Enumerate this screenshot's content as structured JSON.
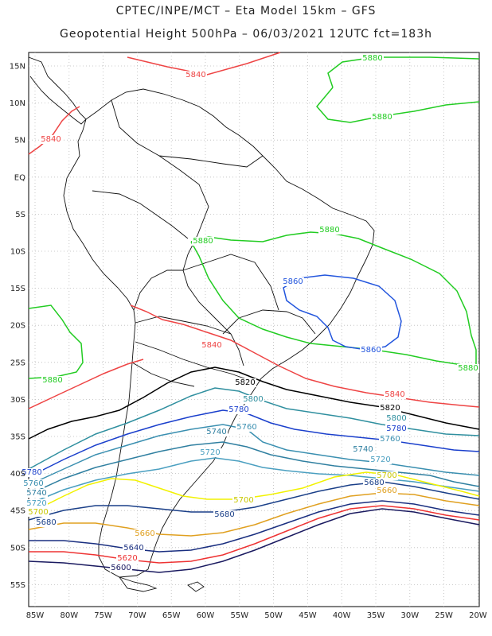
{
  "title_line1": "CPTEC/INPE/MCT  –  Eta Model 15km  –  GFS",
  "title_line2": "Geopotential Height 500hPa – 06/03/2021 12UTC fct=183h",
  "lat_labels": [
    "15N",
    "10N",
    "5N",
    "EQ",
    "5S",
    "10S",
    "15S",
    "20S",
    "25S",
    "30S",
    "35S",
    "40S",
    "45S",
    "50S",
    "55S"
  ],
  "lon_labels": [
    "85W",
    "80W",
    "75W",
    "70W",
    "65W",
    "60W",
    "55W",
    "50W",
    "45W",
    "40W",
    "35W",
    "30W",
    "25W",
    "20W"
  ],
  "contour_labels": {
    "c5880_ne": "5880",
    "c5880_n": "5880",
    "c5880_amz": "5880",
    "c5880_nebr": "5880",
    "c5880_e": "5880",
    "c5880_w": "5880",
    "c5860_a": "5860",
    "c5860_b": "5860",
    "c5840_nw": "5840",
    "c5840_ven": "5840",
    "c5840_arg": "5840",
    "c5840_e": "5840",
    "c5820_a": "5820",
    "c5820_b": "5820",
    "c5800_a": "5800",
    "c5800_b": "5800",
    "c5780_a": "5780",
    "c5780_b": "5780",
    "c5760_a": "5760",
    "c5760_b": "5760",
    "c5740_a": "5740",
    "c5740_b": "5740",
    "c5720_a": "5720",
    "c5720_b": "5720",
    "c5700_a": "5700",
    "c5700_b": "5700",
    "c5680_a": "5680",
    "c5680_b": "5680",
    "c5660_a": "5660",
    "c5660_b": "5660",
    "c5640": "5640",
    "c5620": "5620",
    "c5600": "5600",
    "w5780": "5780",
    "w5760": "5760",
    "w5740": "5740",
    "w5720": "5720",
    "w5700": "5700",
    "w5680": "5680"
  },
  "colors": {
    "c5880": "#22cc22",
    "c5860": "#2255dd",
    "c5840": "#ee4444",
    "c5820": "#000000",
    "c5800": "#2f8f9f",
    "c5780": "#1a3fcc",
    "c5760": "#3a8fb0",
    "c5740": "#2f7fa0",
    "c5720": "#4a9fc0",
    "c5700": "#f2f200",
    "c5680": "#1a3f88",
    "c5660": "#e0a020",
    "c5640": "#1a2f80",
    "c5620": "#ee3333",
    "c5600": "#1a1a60"
  }
}
